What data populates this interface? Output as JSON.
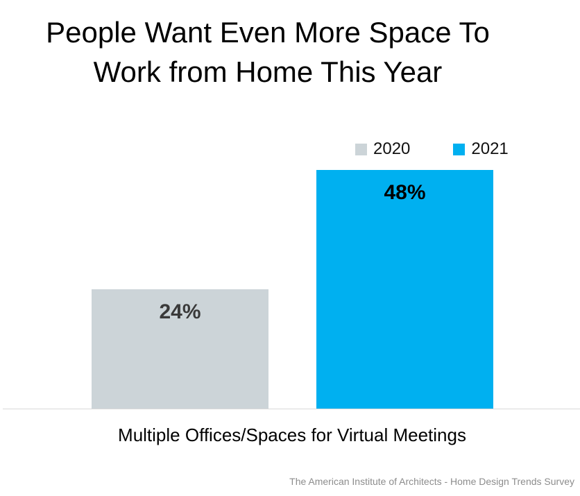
{
  "chart_data": {
    "type": "bar",
    "title_lines": [
      "People Want Even More Space To",
      "Work from Home This Year"
    ],
    "categories": [
      "Multiple Offices/Spaces for Virtual Meetings"
    ],
    "series": [
      {
        "name": "2020",
        "values": [
          24
        ],
        "label": "24%",
        "color": "#ccd4d8"
      },
      {
        "name": "2021",
        "values": [
          48
        ],
        "label": "48%",
        "color": "#00b0f0"
      }
    ],
    "ylim": [
      0,
      60
    ],
    "grid": false,
    "legend_position": "top-right",
    "source": "The American Institute of Architects - Home Design Trends Survey"
  }
}
